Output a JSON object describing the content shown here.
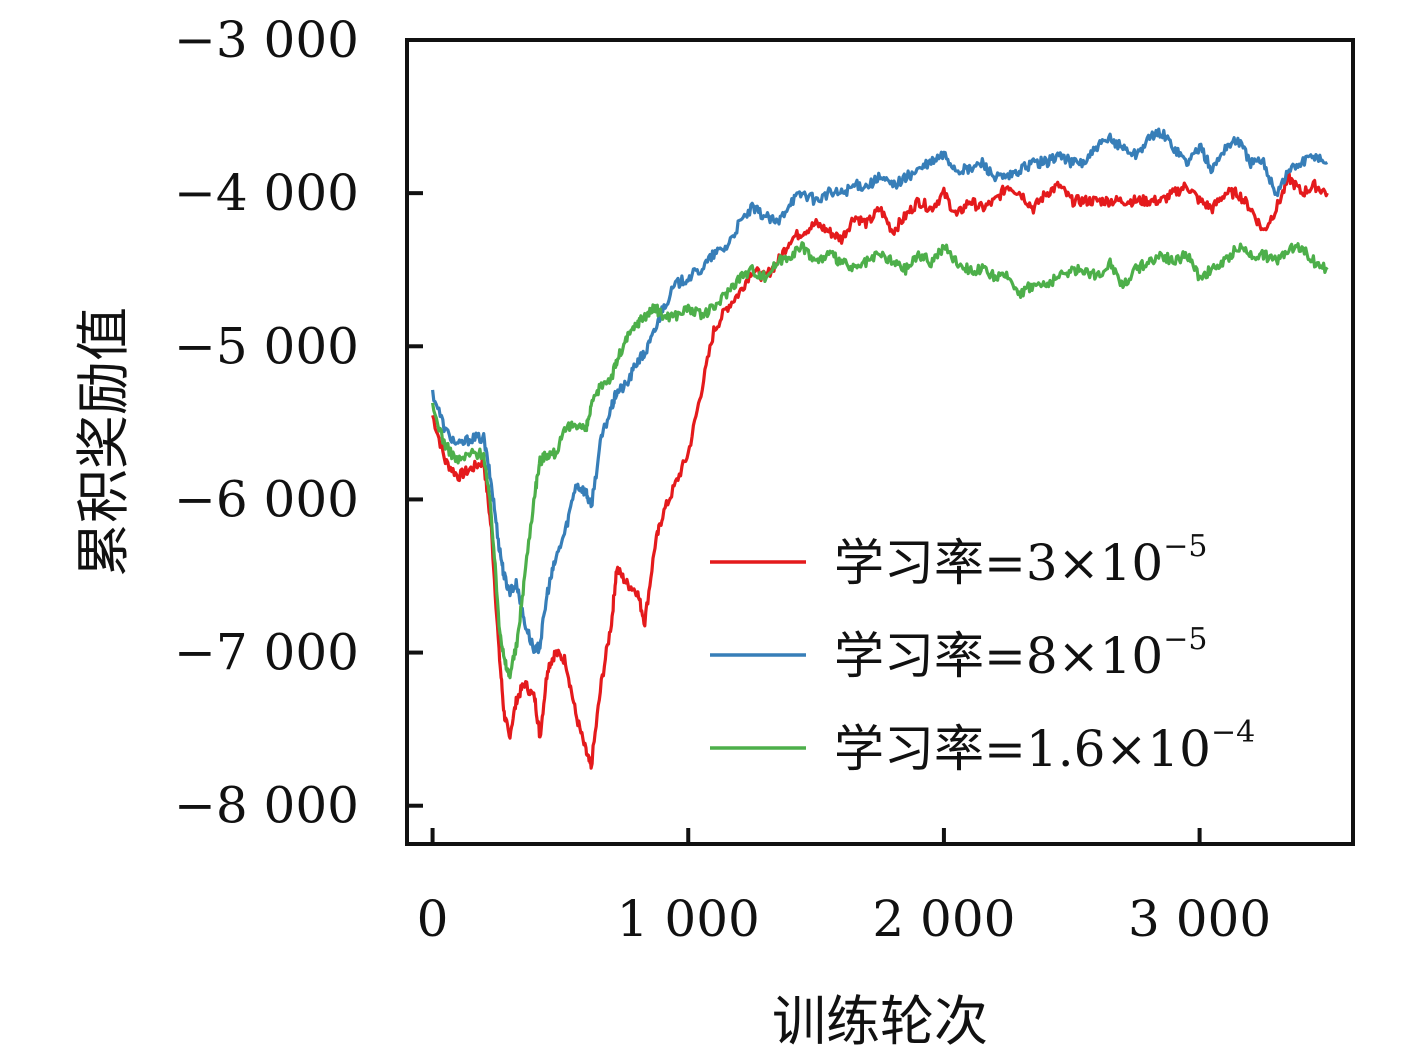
{
  "chart_data": {
    "type": "line",
    "title": "",
    "xlabel": "训练轮次",
    "ylabel": "累积奖励值",
    "xlim": [
      -100,
      3600
    ],
    "ylim": [
      -8250,
      -3000
    ],
    "x_ticks": [
      0,
      1000,
      2000,
      3000
    ],
    "x_tick_labels": [
      "0",
      "1 000",
      "2 000",
      "3 000"
    ],
    "y_ticks": [
      -3000,
      -4000,
      -5000,
      -6000,
      -7000,
      -8000
    ],
    "y_tick_labels": [
      "−3 000",
      "−4 000",
      "−5 000",
      "−6 000",
      "−7 000",
      "−8 000"
    ],
    "grid": false,
    "legend_position": "right",
    "series": [
      {
        "name": "学习率=3×10⁻⁵",
        "legend_base": "学习率=3×10",
        "legend_exp": "−5",
        "color": "#e41a1c",
        "x": [
          0,
          50,
          100,
          150,
          200,
          230,
          260,
          280,
          300,
          330,
          360,
          400,
          420,
          450,
          480,
          520,
          560,
          600,
          620,
          660,
          700,
          720,
          760,
          800,
          830,
          870,
          900,
          950,
          1000,
          1050,
          1100,
          1150,
          1200,
          1250,
          1300,
          1350,
          1400,
          1450,
          1500,
          1550,
          1600,
          1650,
          1700,
          1750,
          1800,
          1850,
          1900,
          1950,
          2000,
          2050,
          2100,
          2150,
          2200,
          2250,
          2300,
          2350,
          2400,
          2450,
          2500,
          2550,
          2600,
          2650,
          2700,
          2750,
          2800,
          2850,
          2900,
          2950,
          3000,
          3050,
          3100,
          3150,
          3200,
          3250,
          3300,
          3350,
          3400,
          3450,
          3500
        ],
        "y": [
          -5450,
          -5750,
          -5850,
          -5800,
          -5750,
          -6200,
          -7000,
          -7400,
          -7550,
          -7300,
          -7200,
          -7300,
          -7550,
          -7100,
          -7000,
          -7050,
          -7400,
          -7650,
          -7750,
          -7200,
          -6800,
          -6450,
          -6550,
          -6600,
          -6800,
          -6300,
          -6100,
          -5900,
          -5700,
          -5300,
          -4900,
          -4750,
          -4650,
          -4500,
          -4550,
          -4450,
          -4300,
          -4250,
          -4200,
          -4250,
          -4300,
          -4150,
          -4200,
          -4100,
          -4250,
          -4150,
          -4050,
          -4100,
          -4000,
          -4150,
          -4050,
          -4100,
          -4050,
          -3950,
          -4000,
          -4100,
          -4000,
          -3950,
          -4050,
          -4050,
          -4050,
          -4050,
          -4050,
          -4050,
          -4050,
          -4050,
          -4000,
          -3950,
          -4050,
          -4100,
          -4000,
          -4000,
          -4100,
          -4250,
          -4100,
          -3900,
          -4000,
          -3950,
          -4000
        ]
      },
      {
        "name": "学习率=8×10⁻⁵",
        "legend_base": "学习率=8×10",
        "legend_exp": "−5",
        "color": "#377eb8",
        "x": [
          0,
          50,
          100,
          150,
          200,
          230,
          260,
          280,
          300,
          330,
          360,
          400,
          420,
          450,
          480,
          520,
          560,
          600,
          620,
          660,
          700,
          720,
          760,
          800,
          830,
          870,
          900,
          950,
          1000,
          1050,
          1100,
          1150,
          1200,
          1250,
          1300,
          1350,
          1400,
          1450,
          1500,
          1550,
          1600,
          1650,
          1700,
          1750,
          1800,
          1850,
          1900,
          1950,
          2000,
          2050,
          2100,
          2150,
          2200,
          2250,
          2300,
          2350,
          2400,
          2450,
          2500,
          2550,
          2600,
          2650,
          2700,
          2750,
          2800,
          2850,
          2900,
          2950,
          3000,
          3050,
          3100,
          3150,
          3200,
          3250,
          3300,
          3350,
          3400,
          3450,
          3500
        ],
        "y": [
          -5300,
          -5550,
          -5650,
          -5600,
          -5600,
          -5900,
          -6300,
          -6500,
          -6600,
          -6550,
          -6800,
          -7000,
          -6950,
          -6600,
          -6400,
          -6200,
          -5900,
          -5950,
          -6050,
          -5600,
          -5400,
          -5300,
          -5250,
          -5100,
          -5050,
          -4900,
          -4750,
          -4600,
          -4550,
          -4500,
          -4400,
          -4350,
          -4200,
          -4100,
          -4150,
          -4200,
          -4050,
          -4000,
          -4050,
          -4000,
          -4000,
          -3950,
          -3950,
          -3900,
          -3950,
          -3900,
          -3850,
          -3800,
          -3750,
          -3850,
          -3850,
          -3800,
          -3900,
          -3900,
          -3850,
          -3800,
          -3800,
          -3750,
          -3800,
          -3800,
          -3700,
          -3650,
          -3700,
          -3750,
          -3650,
          -3600,
          -3700,
          -3800,
          -3700,
          -3850,
          -3700,
          -3650,
          -3800,
          -3800,
          -4000,
          -3850,
          -3800,
          -3750,
          -3800
        ]
      },
      {
        "name": "学习率=1.6×10⁻⁴",
        "legend_base": "学习率=1.6×10",
        "legend_exp": "−4",
        "color": "#4daf4a",
        "x": [
          0,
          50,
          100,
          150,
          200,
          230,
          260,
          280,
          300,
          330,
          360,
          400,
          420,
          450,
          480,
          520,
          560,
          600,
          620,
          660,
          700,
          720,
          760,
          800,
          830,
          870,
          900,
          950,
          1000,
          1050,
          1100,
          1150,
          1200,
          1250,
          1300,
          1350,
          1400,
          1450,
          1500,
          1550,
          1600,
          1650,
          1700,
          1750,
          1800,
          1850,
          1900,
          1950,
          2000,
          2050,
          2100,
          2150,
          2200,
          2250,
          2300,
          2350,
          2400,
          2450,
          2500,
          2550,
          2600,
          2650,
          2700,
          2750,
          2800,
          2850,
          2900,
          2950,
          3000,
          3050,
          3100,
          3150,
          3200,
          3250,
          3300,
          3350,
          3400,
          3450,
          3500
        ],
        "y": [
          -5400,
          -5650,
          -5750,
          -5700,
          -5700,
          -6100,
          -6800,
          -7050,
          -7150,
          -6950,
          -6500,
          -5950,
          -5750,
          -5700,
          -5700,
          -5550,
          -5500,
          -5550,
          -5400,
          -5250,
          -5200,
          -5100,
          -4950,
          -4850,
          -4800,
          -4750,
          -4800,
          -4800,
          -4750,
          -4800,
          -4750,
          -4650,
          -4550,
          -4500,
          -4550,
          -4450,
          -4400,
          -4350,
          -4450,
          -4400,
          -4450,
          -4500,
          -4450,
          -4400,
          -4450,
          -4500,
          -4400,
          -4450,
          -4350,
          -4450,
          -4500,
          -4500,
          -4550,
          -4550,
          -4650,
          -4600,
          -4600,
          -4550,
          -4500,
          -4500,
          -4550,
          -4450,
          -4600,
          -4500,
          -4450,
          -4400,
          -4450,
          -4400,
          -4550,
          -4500,
          -4450,
          -4350,
          -4400,
          -4400,
          -4450,
          -4350,
          -4350,
          -4450,
          -4500
        ]
      }
    ]
  }
}
